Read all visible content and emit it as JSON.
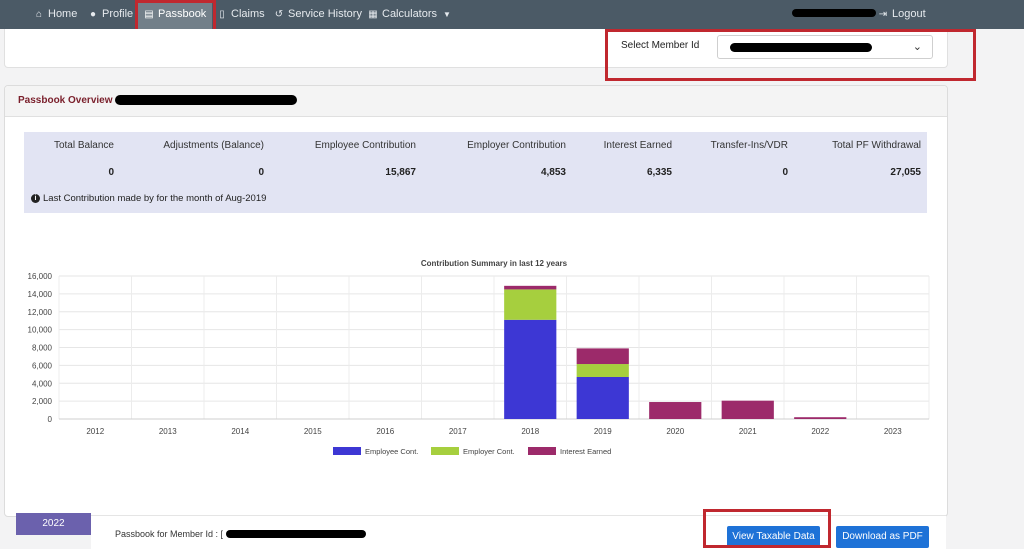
{
  "nav": {
    "items": [
      {
        "label": "Home",
        "icon": "home-icon"
      },
      {
        "label": "Profile",
        "icon": "user-icon"
      },
      {
        "label": "Passbook",
        "icon": "passbook-icon"
      },
      {
        "label": "Claims",
        "icon": "document-icon"
      },
      {
        "label": "Service History",
        "icon": "history-icon"
      },
      {
        "label": "Calculators",
        "icon": "calculator-icon"
      }
    ],
    "logout": "Logout"
  },
  "member": {
    "label": "Select Member Id"
  },
  "overview": {
    "title": "Passbook Overview",
    "headers": [
      "Total Balance",
      "Adjustments (Balance)",
      "Employee Contribution",
      "Employer Contribution",
      "Interest Earned",
      "Transfer-Ins/VDR",
      "Total PF Withdrawal"
    ],
    "values": [
      "0",
      "0",
      "15,867",
      "4,853",
      "6,335",
      "0",
      "27,055"
    ],
    "last_contribution": "Last Contribution made by for the month of Aug-2019"
  },
  "chart_data": {
    "type": "bar",
    "stacked": true,
    "title": "Contribution Summary in last 12 years",
    "categories": [
      "2012",
      "2013",
      "2014",
      "2015",
      "2016",
      "2017",
      "2018",
      "2019",
      "2020",
      "2021",
      "2022",
      "2023"
    ],
    "series": [
      {
        "name": "Employee Cont.",
        "color": "#3d37d4",
        "values": [
          0,
          0,
          0,
          0,
          0,
          0,
          11100,
          4700,
          0,
          0,
          0,
          0
        ]
      },
      {
        "name": "Employer Cont.",
        "color": "#a6cf3e",
        "values": [
          0,
          0,
          0,
          0,
          0,
          0,
          3400,
          1450,
          0,
          0,
          0,
          0
        ]
      },
      {
        "name": "Interest Earned",
        "color": "#9c2a6a",
        "values": [
          0,
          0,
          0,
          0,
          0,
          0,
          400,
          1750,
          1900,
          2050,
          200,
          0
        ]
      }
    ],
    "ylim": [
      0,
      16000
    ],
    "yticks": [
      "0",
      "2,000",
      "4,000",
      "6,000",
      "8,000",
      "10,000",
      "12,000",
      "14,000",
      "16,000"
    ],
    "grid": true,
    "legend": "bottom"
  },
  "bottom": {
    "year_tab": "2022",
    "passbook_for": "Passbook for Member Id : [",
    "view_taxable": "View Taxable Data",
    "download_pdf": "Download as PDF"
  }
}
